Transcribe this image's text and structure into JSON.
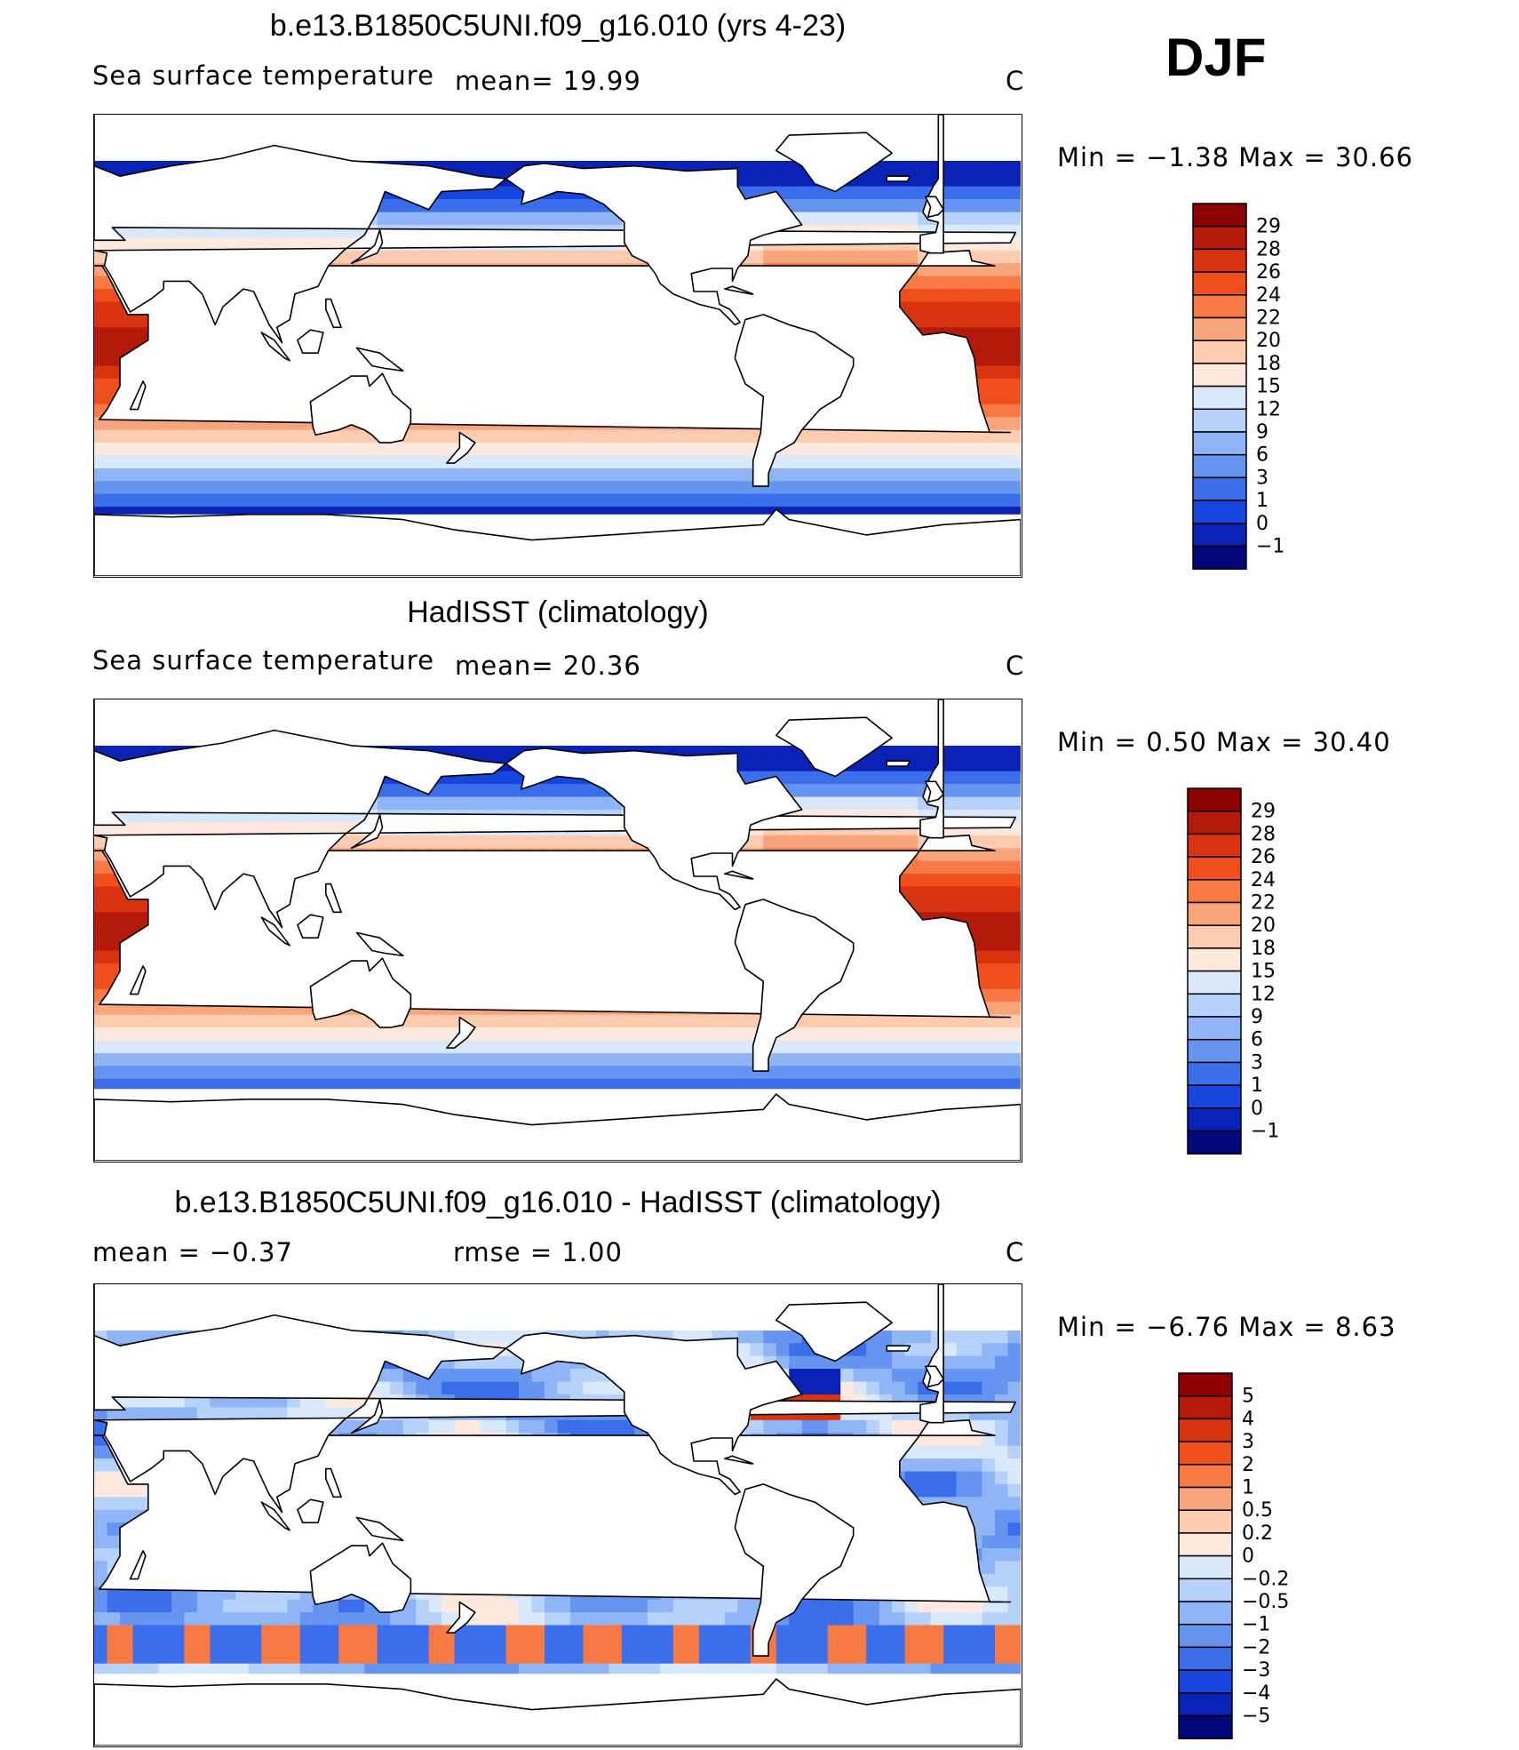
{
  "season": "DJF",
  "panels": [
    {
      "title": "b.e13.B1850C5UNI.f09_g16.010 (yrs 4-23)",
      "left_label": "Sea surface temperature",
      "stat1": "mean=   19.99",
      "stat2": "",
      "units": "C",
      "minmax": "Min  =   −1.38  Max  =    30.66",
      "field": "model",
      "colorbar": {
        "labels": [
          "29",
          "28",
          "26",
          "24",
          "22",
          "20",
          "18",
          "15",
          "12",
          "9",
          "6",
          "3",
          "1",
          "0",
          "−1"
        ],
        "colors": [
          "#8b0000",
          "#b31a0a",
          "#d8340f",
          "#ef4f1c",
          "#f77a45",
          "#f9a57c",
          "#fccbb0",
          "#fde9dd",
          "#d9e9fb",
          "#b6d2fa",
          "#8fb5f6",
          "#6595f0",
          "#3a6eea",
          "#1746de",
          "#0a22b5",
          "#00087a"
        ]
      }
    },
    {
      "title": "HadISST (climatology)",
      "left_label": "Sea surface temperature",
      "stat1": "mean=   20.36",
      "stat2": "",
      "units": "C",
      "minmax": "Min  =     0.50  Max  =    30.40",
      "field": "obs",
      "colorbar": {
        "labels": [
          "29",
          "28",
          "26",
          "24",
          "22",
          "20",
          "18",
          "15",
          "12",
          "9",
          "6",
          "3",
          "1",
          "0",
          "−1"
        ],
        "colors": [
          "#8b0000",
          "#b31a0a",
          "#d8340f",
          "#ef4f1c",
          "#f77a45",
          "#f9a57c",
          "#fccbb0",
          "#fde9dd",
          "#d9e9fb",
          "#b6d2fa",
          "#8fb5f6",
          "#6595f0",
          "#3a6eea",
          "#1746de",
          "#0a22b5",
          "#00087a"
        ]
      }
    },
    {
      "title": "b.e13.B1850C5UNI.f09_g16.010 - HadISST (climatology)",
      "left_label": "mean  =    −0.37",
      "stat1": "rmse  =     1.00",
      "stat2": "",
      "units": "C",
      "minmax": "Min  =   −6.76  Max  =      8.63",
      "field": "diff",
      "colorbar": {
        "labels": [
          "5",
          "4",
          "3",
          "2",
          "1",
          "0.5",
          "0.2",
          "0",
          "−0.2",
          "−0.5",
          "−1",
          "−2",
          "−3",
          "−4",
          "−5"
        ],
        "colors": [
          "#8b0000",
          "#b31a0a",
          "#d8340f",
          "#ef4f1c",
          "#f77a45",
          "#f9a57c",
          "#fccbb0",
          "#fde9dd",
          "#d9e9fb",
          "#b6d2fa",
          "#8fb5f6",
          "#6595f0",
          "#3a6eea",
          "#1746de",
          "#0a22b5",
          "#00087a"
        ]
      }
    }
  ]
}
